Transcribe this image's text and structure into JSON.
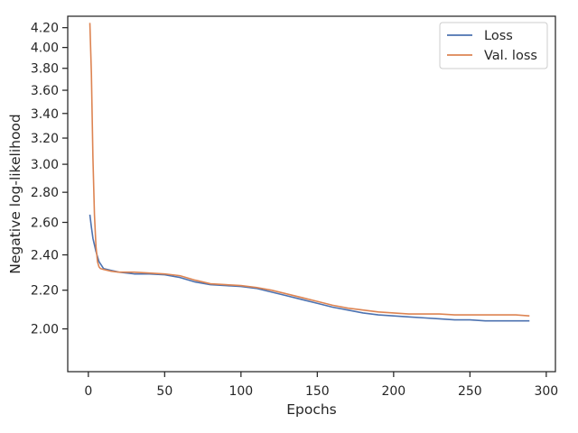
{
  "chart_data": {
    "type": "line",
    "title": "",
    "xlabel": "Epochs",
    "ylabel": "Negative log-likelihood",
    "xlim": [
      -13.5,
      306
    ],
    "ylim": [
      1.8,
      4.32
    ],
    "y_scale": "log",
    "grid": false,
    "legend_position": "top-right",
    "x_ticks": [
      0,
      50,
      100,
      150,
      200,
      250,
      300
    ],
    "x_tick_labels": [
      "0",
      "50",
      "100",
      "150",
      "200",
      "250",
      "300"
    ],
    "y_ticks": [
      2.0,
      2.2,
      2.4,
      2.6,
      2.8,
      3.0,
      3.2,
      3.4,
      3.6,
      3.8,
      4.0,
      4.2
    ],
    "y_tick_labels": [
      "2.00",
      "2.20",
      "2.40",
      "2.60",
      "2.80",
      "3.00",
      "3.20",
      "3.40",
      "3.60",
      "3.80",
      "4.00",
      "4.20"
    ],
    "series": [
      {
        "name": "Loss",
        "color": "#4c72b0",
        "x": [
          1,
          2,
          3,
          5,
          7,
          10,
          15,
          20,
          30,
          40,
          50,
          60,
          70,
          80,
          90,
          100,
          110,
          120,
          130,
          140,
          150,
          160,
          170,
          180,
          190,
          200,
          210,
          220,
          230,
          240,
          250,
          260,
          270,
          280,
          289
        ],
        "y": [
          2.65,
          2.57,
          2.5,
          2.42,
          2.36,
          2.32,
          2.31,
          2.3,
          2.29,
          2.29,
          2.285,
          2.27,
          2.245,
          2.23,
          2.225,
          2.22,
          2.21,
          2.19,
          2.17,
          2.15,
          2.13,
          2.11,
          2.095,
          2.08,
          2.07,
          2.065,
          2.06,
          2.055,
          2.05,
          2.045,
          2.045,
          2.04,
          2.04,
          2.04,
          2.04
        ]
      },
      {
        "name": "Val. loss",
        "color": "#dd8452",
        "x": [
          1,
          2,
          3,
          4,
          5,
          6,
          7,
          8,
          10,
          15,
          20,
          30,
          40,
          50,
          60,
          70,
          80,
          90,
          100,
          110,
          120,
          130,
          140,
          150,
          160,
          170,
          180,
          190,
          200,
          210,
          220,
          230,
          240,
          250,
          260,
          270,
          280,
          289
        ],
        "y": [
          4.25,
          3.75,
          3.05,
          2.65,
          2.45,
          2.36,
          2.33,
          2.32,
          2.315,
          2.305,
          2.3,
          2.3,
          2.295,
          2.29,
          2.28,
          2.255,
          2.235,
          2.23,
          2.225,
          2.215,
          2.2,
          2.18,
          2.16,
          2.14,
          2.12,
          2.105,
          2.095,
          2.085,
          2.08,
          2.075,
          2.075,
          2.075,
          2.07,
          2.07,
          2.07,
          2.07,
          2.07,
          2.065
        ]
      }
    ]
  }
}
